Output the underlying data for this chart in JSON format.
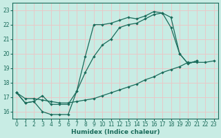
{
  "xlabel": "Humidex (Indice chaleur)",
  "background_color": "#c8ece4",
  "grid_color": "#e8c8c8",
  "line_color": "#1a6b5a",
  "xlim": [
    -0.5,
    23.5
  ],
  "ylim": [
    15.5,
    23.5
  ],
  "yticks": [
    16,
    17,
    18,
    19,
    20,
    21,
    22,
    23
  ],
  "xticks": [
    0,
    1,
    2,
    3,
    4,
    5,
    6,
    7,
    8,
    9,
    10,
    11,
    12,
    13,
    14,
    15,
    16,
    17,
    18,
    19,
    20,
    21,
    22,
    23
  ],
  "line1_x": [
    0,
    1,
    2,
    3,
    4,
    5,
    6,
    7,
    8,
    9,
    10,
    11,
    12,
    13,
    14,
    15,
    16,
    17,
    18,
    19,
    20,
    21
  ],
  "line1_y": [
    17.3,
    16.6,
    16.7,
    16.0,
    15.8,
    15.8,
    15.8,
    17.4,
    19.8,
    22.0,
    22.0,
    22.1,
    22.3,
    22.5,
    22.4,
    22.6,
    22.9,
    22.8,
    22.5,
    20.0,
    19.3,
    19.5
  ],
  "line2_x": [
    0,
    1,
    2,
    3,
    4,
    5,
    6,
    7,
    8,
    9,
    10,
    11,
    12,
    13,
    14,
    15,
    16,
    17,
    18,
    19,
    20,
    21
  ],
  "line2_y": [
    17.3,
    16.6,
    16.7,
    17.1,
    16.5,
    16.5,
    16.5,
    17.4,
    18.7,
    19.8,
    20.6,
    21.0,
    21.8,
    22.0,
    22.1,
    22.4,
    22.7,
    22.8,
    21.8,
    20.0,
    19.3,
    19.5
  ],
  "line3_x": [
    0,
    1,
    2,
    3,
    4,
    5,
    6,
    7,
    8,
    9,
    10,
    11,
    12,
    13,
    14,
    15,
    16,
    17,
    18,
    19,
    20,
    21,
    22,
    23
  ],
  "line3_y": [
    17.3,
    16.9,
    16.9,
    16.8,
    16.7,
    16.6,
    16.6,
    16.7,
    16.8,
    16.9,
    17.1,
    17.3,
    17.5,
    17.7,
    17.9,
    18.2,
    18.4,
    18.7,
    18.9,
    19.1,
    19.4,
    19.4,
    19.4,
    19.5
  ]
}
